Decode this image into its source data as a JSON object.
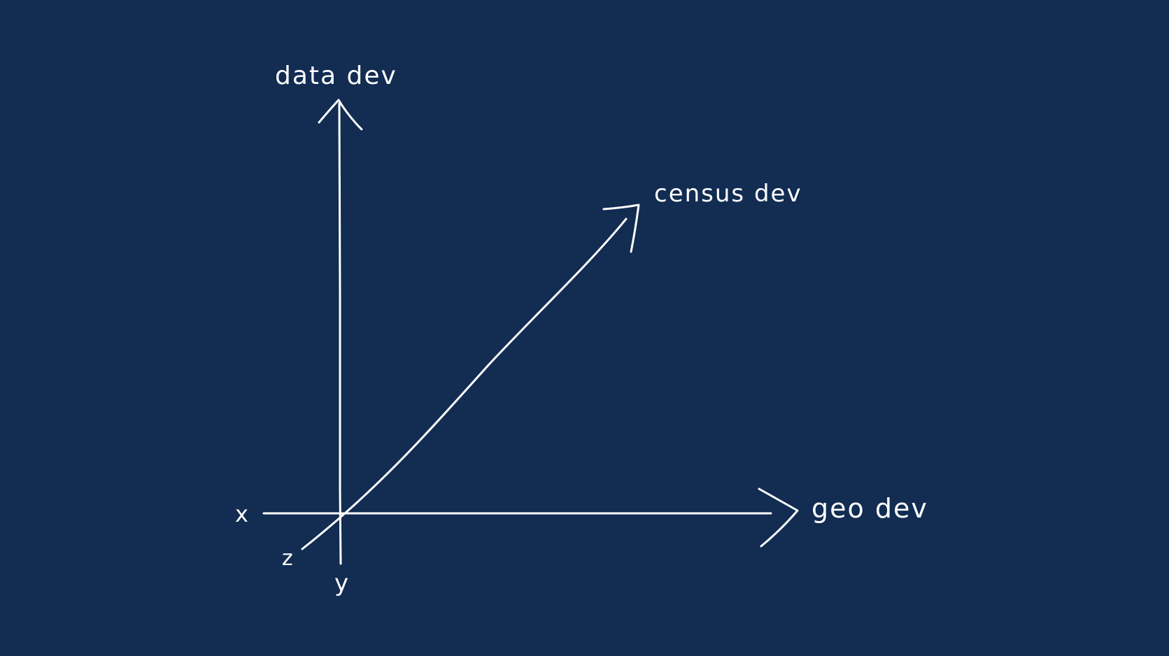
{
  "colors": {
    "background": "#122c52",
    "ink": "#ffffff"
  },
  "axes": {
    "vertical": {
      "label": "data dev",
      "end_label": "y"
    },
    "horizontal": {
      "label": "geo dev",
      "start_label": "x"
    },
    "diagonal": {
      "label": "census dev",
      "start_label": "z"
    }
  }
}
